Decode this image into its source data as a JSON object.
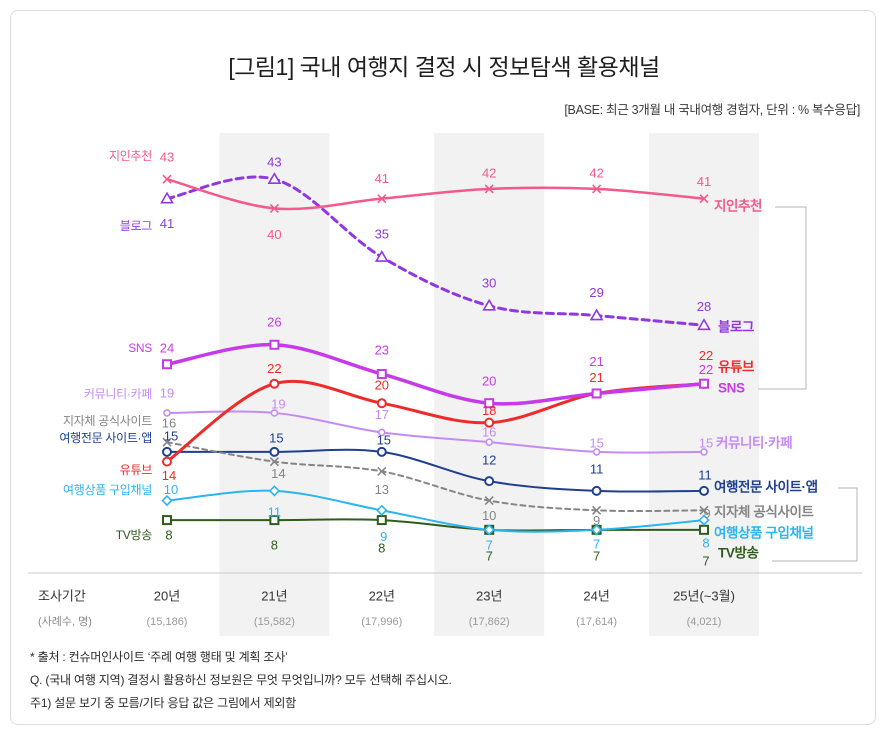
{
  "chart_data": {
    "type": "line",
    "title": "[그림1] 국내 여행지 결정 시 정보탐색 활용채널",
    "subtitle": "[BASE: 최근 3개월 내 국내여행 경험자, 단위 : % 복수응답]",
    "xlabel": "조사기간",
    "sample_label": "(사례수, 명)",
    "categories": [
      "20년",
      "21년",
      "22년",
      "23년",
      "24년",
      "25년(~3월)"
    ],
    "sample_sizes": [
      "(15,186)",
      "(15,582)",
      "(17,996)",
      "(17,862)",
      "(17,614)",
      "(4,021)"
    ],
    "series": [
      {
        "name": "지인추천",
        "color": "#f35a8c",
        "values": [
          43,
          40,
          41,
          42,
          42,
          41
        ]
      },
      {
        "name": "블로그",
        "color": "#9038e0",
        "values": [
          41,
          43,
          35,
          30,
          29,
          28
        ]
      },
      {
        "name": "SNS",
        "color": "#c63ae8",
        "values": [
          24,
          26,
          23,
          20,
          21,
          22
        ]
      },
      {
        "name": "유튜브",
        "color": "#ee2a2a",
        "values": [
          14,
          22,
          20,
          18,
          21,
          22
        ]
      },
      {
        "name": "커뮤니티·카페",
        "color": "#c48cf2",
        "values": [
          19,
          19,
          17,
          16,
          15,
          15
        ]
      },
      {
        "name": "지자체 공식사이트",
        "color": "#858585",
        "values": [
          16,
          14,
          13,
          10,
          9,
          9
        ]
      },
      {
        "name": "여행전문 사이트·앱",
        "color": "#1f3f8f",
        "values": [
          15,
          15,
          15,
          12,
          11,
          11
        ]
      },
      {
        "name": "여행상품 구입채널",
        "color": "#2bb5ef",
        "values": [
          10,
          11,
          9,
          7,
          7,
          8
        ]
      },
      {
        "name": "TV방송",
        "color": "#2f5c1c",
        "values": [
          8,
          8,
          8,
          7,
          7,
          7
        ]
      }
    ],
    "grid": false,
    "legend": "inline"
  },
  "footnotes": [
    "* 출처 : 컨슈머인사이트 ‘주례 여행 행태 및 계획 조사’",
    "Q. (국내 여행 지역) 결정시 활용하신 정보원은 무엇 무엇입니까? 모두 선택해 주십시오.",
    "주1) 설문 보기 중 모름/기타 응답 값은 그림에서 제외함"
  ]
}
